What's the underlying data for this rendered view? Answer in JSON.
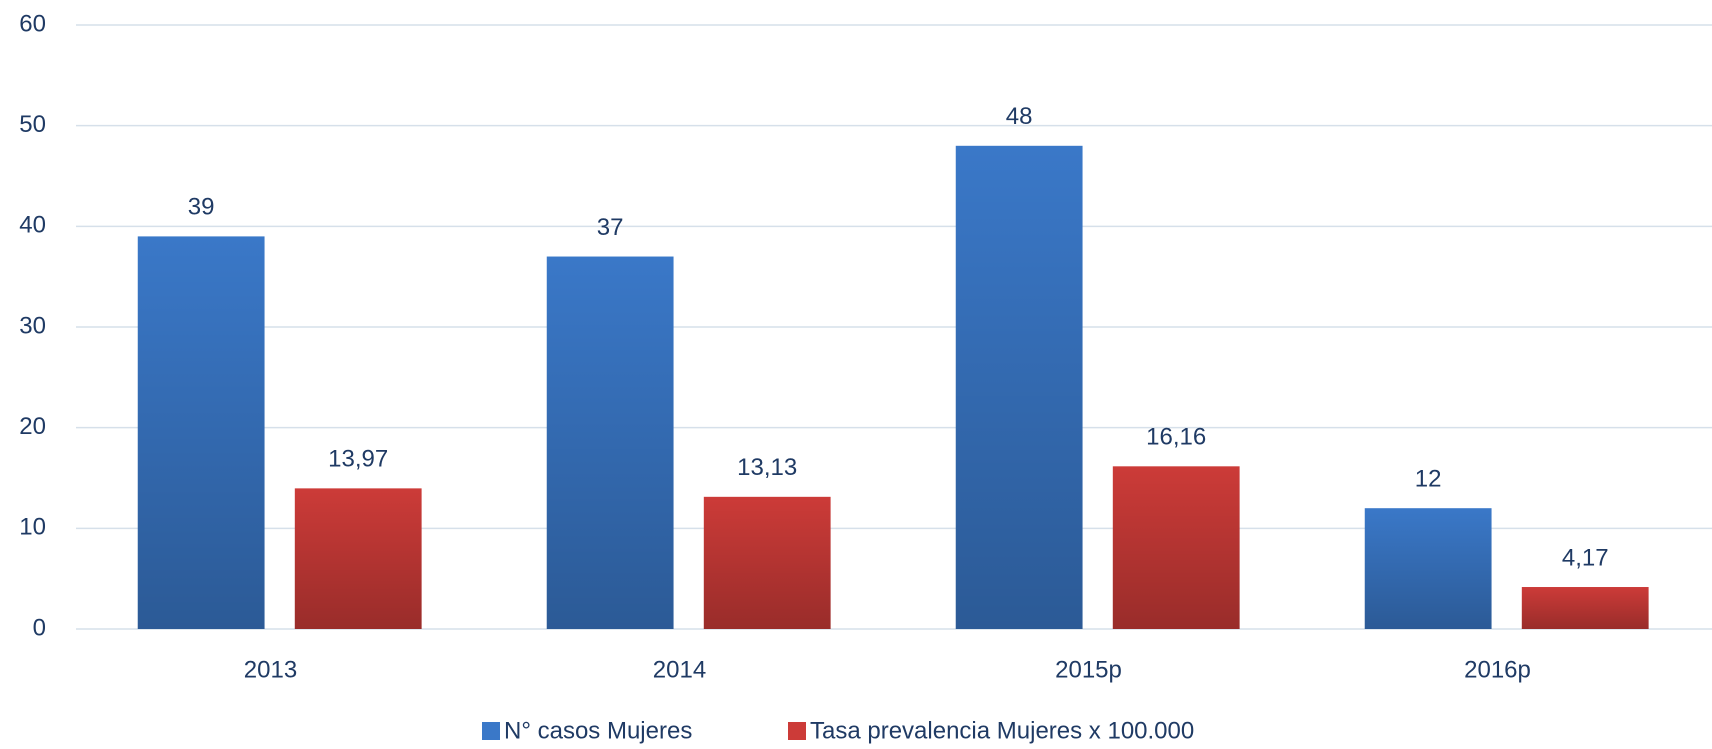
{
  "chart_data": {
    "type": "bar",
    "categories": [
      "2013",
      "2014",
      "2015p",
      "2016p"
    ],
    "series": [
      {
        "name": "N° casos Mujeres",
        "color": "#3a78c8",
        "values": [
          39,
          37,
          48,
          12
        ]
      },
      {
        "name": "Tasa prevalencia Mujeres x 100.000",
        "color": "#cc3b38",
        "values": [
          13.97,
          13.13,
          16.16,
          4.17
        ],
        "value_labels": [
          "13,97",
          "13,13",
          "16,16",
          "4,17"
        ]
      }
    ],
    "ylim": [
      0,
      60
    ],
    "yticks": [
      0,
      10,
      20,
      30,
      40,
      50,
      60
    ],
    "grid": true,
    "legend": "bottom"
  }
}
